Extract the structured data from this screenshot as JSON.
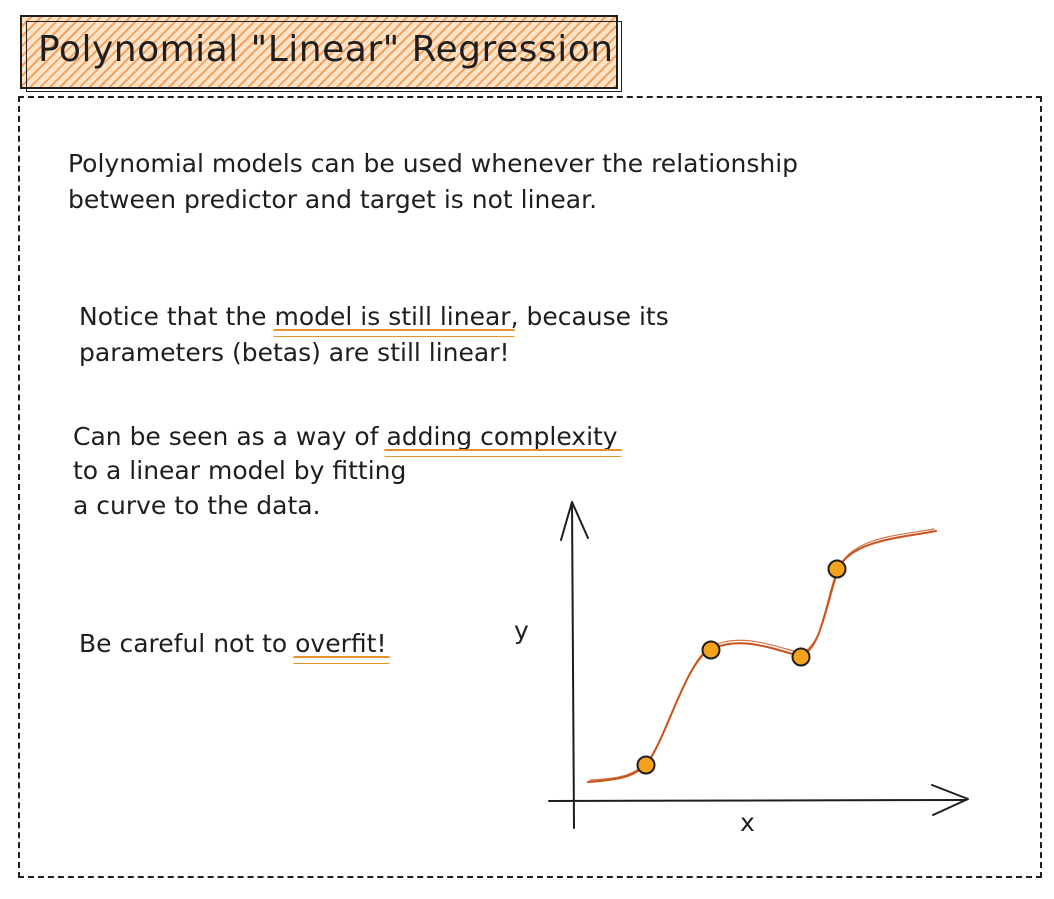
{
  "title": "Polynomial \"Linear\" Regression",
  "paragraphs": {
    "intro_line1": "Polynomial models can be used whenever the relationship",
    "intro_line2": "between predictor and target is not linear.",
    "notice_pre": "Notice that the ",
    "notice_highlight": "model is still linear",
    "notice_post": ", because its",
    "notice_line2": "parameters (betas) are still linear!",
    "complexity_pre": "Can be seen as a way of ",
    "complexity_highlight": "adding complexity",
    "complexity_line2": "to a linear model by fitting",
    "complexity_line3": "a curve to the data.",
    "careful_pre": "Be careful not to ",
    "careful_highlight": "overfit!"
  },
  "plot": {
    "x_label": "x",
    "y_label": "y"
  },
  "colors": {
    "accent": "#e8912d",
    "curve": "#c9531b",
    "point_fill": "#f7a21b",
    "title_hatch": "#f4a260",
    "ink": "#1e1e1e"
  }
}
